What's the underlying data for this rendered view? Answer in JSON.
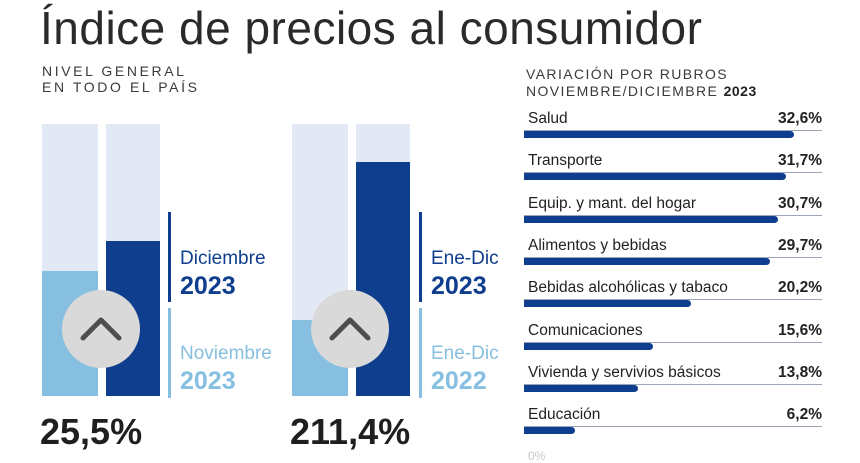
{
  "title": "Índice de precios al consumidor",
  "subtitle_line1": "NIVEL GENERAL",
  "subtitle_line2": "EN TODO EL PAÍS",
  "colors": {
    "dark_blue": "#0e3e8d",
    "light_blue": "#86bfe0",
    "bar_bg": "#e3e9f4"
  },
  "left_chart": {
    "current_label": "Diciembre",
    "current_year": "2023",
    "previous_label": "Noviembre",
    "previous_year": "2023",
    "value": "25,5%",
    "icon": "chevron-up-icon"
  },
  "mid_chart": {
    "current_label": "Ene-Dic",
    "current_year": "2023",
    "previous_label": "Ene-Dic",
    "previous_year": "2022",
    "value": "211,4%",
    "icon": "chevron-up-icon"
  },
  "rubros_title_line1": "VARIACIÓN POR RUBROS",
  "rubros_title_line2": "NOVIEMBRE/DICIEMBRE",
  "rubros_title_year": "2023",
  "rubros_footer": "0%",
  "chart_data": {
    "type": "bar",
    "orientation": "horizontal",
    "title": "VARIACIÓN POR RUBROS NOVIEMBRE/DICIEMBRE 2023",
    "categories": [
      "Salud",
      "Transporte",
      "Equip. y mant. del hogar",
      "Alimentos y bebidas",
      "Bebidas alcohólicas y tabaco",
      "Comunicaciones",
      "Vivienda y servivios básicos",
      "Educación"
    ],
    "values": [
      32.6,
      31.7,
      30.7,
      29.7,
      20.2,
      15.6,
      13.8,
      6.2
    ],
    "value_labels": [
      "32,6%",
      "31,7%",
      "30,7%",
      "29,7%",
      "20,2%",
      "15,6%",
      "13,8%",
      "6,2%"
    ],
    "xlim": [
      0,
      36
    ]
  }
}
